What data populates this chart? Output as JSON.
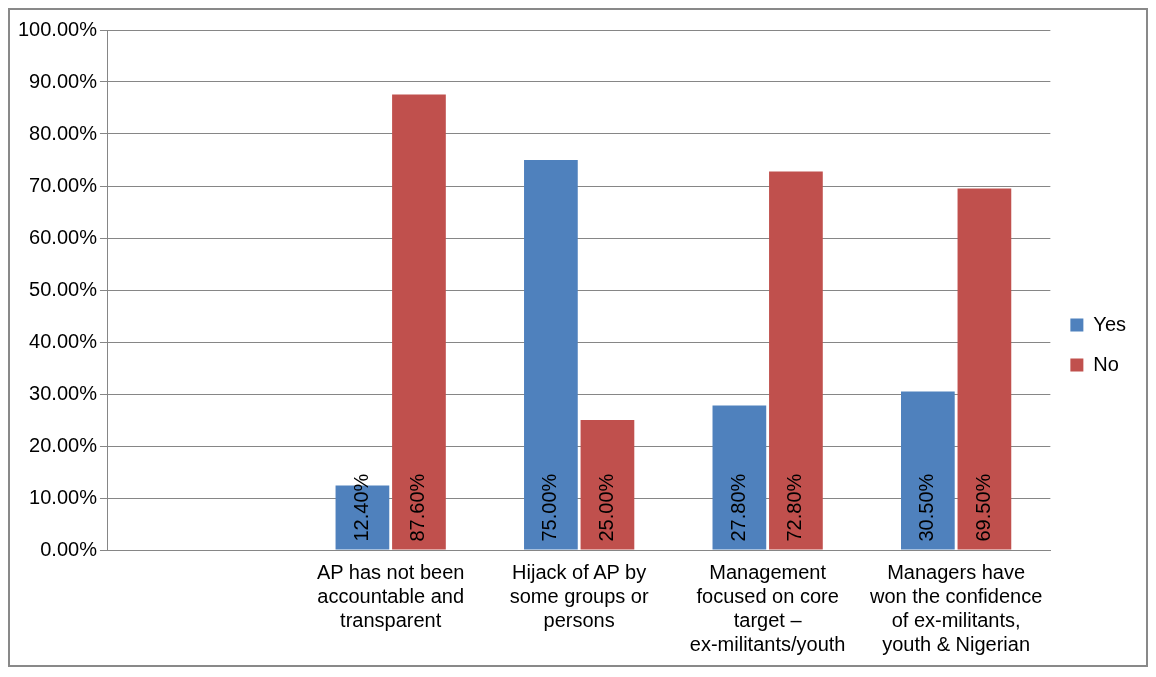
{
  "chart_data": {
    "type": "bar",
    "categories": [
      null,
      "AP has not been accountable and transparent",
      "Hijack of AP by some groups or persons",
      "Management focused on core target – ex-militants/youth",
      "Managers have won the confidence of ex-militants, youth & Nigerian"
    ],
    "series": [
      {
        "name": "Yes",
        "color": "#4f81bd",
        "values": [
          null,
          12.4,
          75,
          27.8,
          30.5
        ],
        "value_labels": [
          null,
          "12.40%",
          "75.00%",
          "27.80%",
          "30.50%"
        ]
      },
      {
        "name": "No",
        "color": "#c0504d",
        "values": [
          null,
          87.6,
          25,
          72.8,
          69.5
        ],
        "value_labels": [
          null,
          "87.60%",
          "25.00%",
          "72.80%",
          "69.50%"
        ]
      }
    ],
    "ylim": [
      0,
      100
    ],
    "yticks": [
      {
        "value": 0,
        "label": "0.00%"
      },
      {
        "value": 10,
        "label": "10.00%"
      },
      {
        "value": 20,
        "label": "20.00%"
      },
      {
        "value": 30,
        "label": "30.00%"
      },
      {
        "value": 40,
        "label": "40.00%"
      },
      {
        "value": 50,
        "label": "50.00%"
      },
      {
        "value": 60,
        "label": "60.00%"
      },
      {
        "value": 70,
        "label": "70.00%"
      },
      {
        "value": 80,
        "label": "80.00%"
      },
      {
        "value": 90,
        "label": "90.00%"
      },
      {
        "value": 100,
        "label": "100.00%"
      }
    ],
    "grid": "y",
    "legend": "right"
  }
}
